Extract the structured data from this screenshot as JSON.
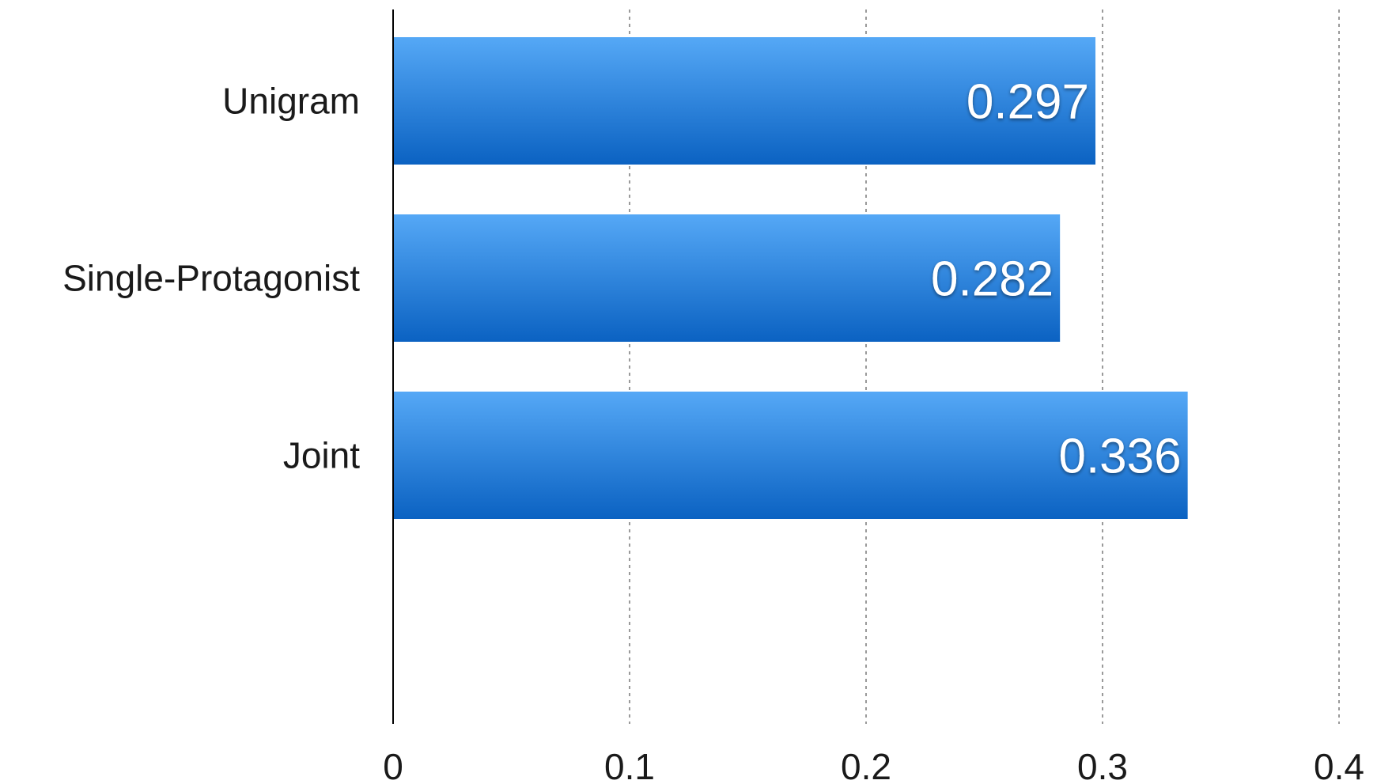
{
  "chart_data": {
    "type": "bar",
    "orientation": "horizontal",
    "categories": [
      "Unigram",
      "Single-Protagonist",
      "Joint"
    ],
    "values": [
      0.297,
      0.282,
      0.336
    ],
    "data_labels": [
      "0.297",
      "0.282",
      "0.336"
    ],
    "xlim": [
      0,
      0.4
    ],
    "x_ticks": [
      0,
      0.1,
      0.2,
      0.3,
      0.4
    ],
    "x_tick_labels": [
      "0",
      "0.1",
      "0.2",
      "0.3",
      "0.4"
    ],
    "grid": "vertical dashed",
    "legend": "none",
    "title": "",
    "xlabel": "",
    "ylabel": "",
    "colors": {
      "bar_top": "#55a8f6",
      "bar_bottom": "#0b62c2",
      "grid": "#9a9a9a",
      "axis": "#000000"
    }
  }
}
